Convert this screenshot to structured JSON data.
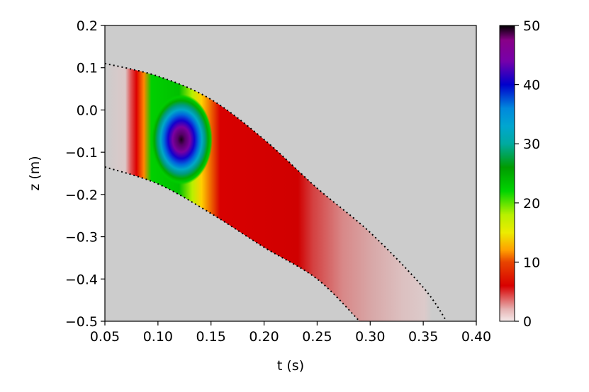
{
  "chart_data": {
    "type": "heatmap",
    "title": "",
    "xlabel": "t (s)",
    "ylabel": "z (m)",
    "xlim": [
      0.05,
      0.4
    ],
    "ylim": [
      -0.5,
      0.2
    ],
    "x_ticks": [
      "0.05",
      "0.10",
      "0.15",
      "0.20",
      "0.25",
      "0.30",
      "0.35",
      "0.40"
    ],
    "y_ticks": [
      "0.2",
      "0.1",
      "0.0",
      "−0.1",
      "−0.2",
      "−0.3",
      "−0.4",
      "−0.5"
    ],
    "background_color": "#cccccc",
    "colorbar": {
      "range": [
        0,
        50
      ],
      "ticks": [
        "50",
        "40",
        "30",
        "20",
        "10",
        "0"
      ],
      "colormap": "nipy_spectral-like (white-pink-red-orange-yellow-green-cyan-blue-purple-black)"
    },
    "boundary_curves": [
      {
        "style": "dotted",
        "points": [
          [
            0.05,
            0.11
          ],
          [
            0.1,
            0.08
          ],
          [
            0.15,
            0.025
          ],
          [
            0.2,
            -0.07
          ],
          [
            0.25,
            -0.185
          ],
          [
            0.3,
            -0.29
          ],
          [
            0.35,
            -0.42
          ],
          [
            0.372,
            -0.5
          ]
        ]
      },
      {
        "style": "dotted",
        "points": [
          [
            0.05,
            -0.135
          ],
          [
            0.1,
            -0.175
          ],
          [
            0.15,
            -0.245
          ],
          [
            0.2,
            -0.325
          ],
          [
            0.25,
            -0.4
          ],
          [
            0.29,
            -0.5
          ]
        ]
      }
    ],
    "peak": {
      "t": 0.122,
      "z": -0.07,
      "value": 50
    }
  }
}
